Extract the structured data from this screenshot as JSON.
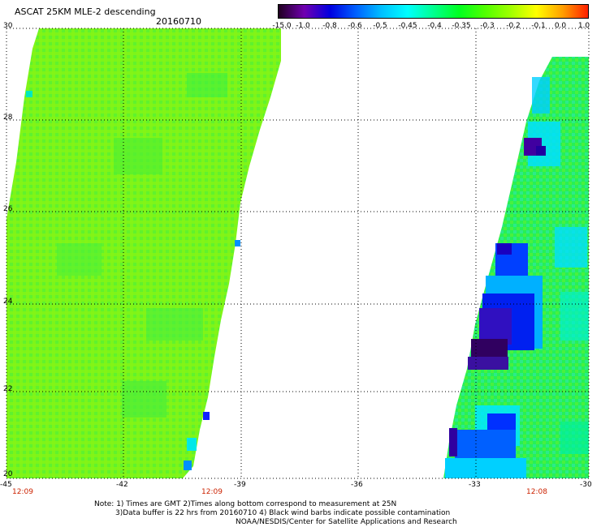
{
  "header": {
    "title": "ASCAT 25KM MLE-2 descending",
    "date": "20160710"
  },
  "colorbar": {
    "labels": [
      "-15.0",
      "-1.0",
      "-0.8",
      "-0.6",
      "-0.5",
      "-0.45",
      "-0.4",
      "-0.35",
      "-0.3",
      "-0.2",
      "-0.1",
      "0.0",
      "1.0"
    ],
    "colors": [
      "#200020",
      "#7000b0",
      "#0000e0",
      "#0060ff",
      "#00c0ff",
      "#00ffff",
      "#00ff90",
      "#00ff20",
      "#50ff00",
      "#a0ff00",
      "#ffff00",
      "#ffa000",
      "#ff2000"
    ]
  },
  "map": {
    "lon_range": [
      -45,
      -30
    ],
    "lat_range": [
      20,
      30
    ],
    "lon_ticks": [
      "-45",
      "-42",
      "-39",
      "-36",
      "-33",
      "-30"
    ],
    "lat_ticks": [
      "30",
      "28",
      "26",
      "24",
      "22",
      "20"
    ],
    "times": [
      "12:09",
      "12:09",
      "12:08"
    ]
  },
  "notes": {
    "line1": "Note: 1) Times are GMT 2)Times along bottom correspond to measurement at 25N",
    "line2": "3)Data buffer is 22 hrs from 20160710 4) Black wind barbs indicate possible contamination",
    "line3": "NOAA/NESDIS/Center for Satellite Applications and Research"
  }
}
